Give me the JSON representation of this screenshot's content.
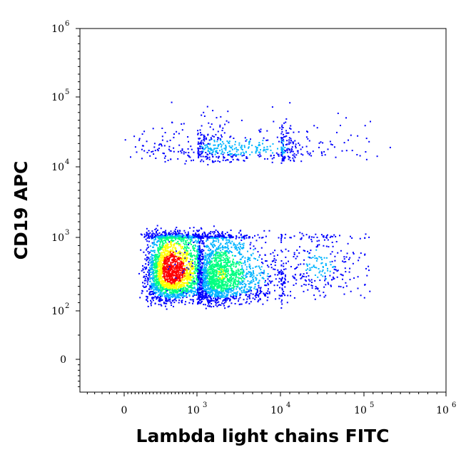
{
  "chart_data": {
    "type": "scatter",
    "plot_style": "flow cytometry density dot plot (biexponential axes)",
    "xlabel": "Lambda light chains FITC",
    "ylabel": "CD19 APC",
    "x_scale": "biexponential",
    "y_scale": "biexponential",
    "xlim": [
      -300,
      1000000
    ],
    "ylim": [
      -300,
      1000000
    ],
    "x_ticks": [
      {
        "value": 0,
        "base": "0",
        "exp": ""
      },
      {
        "value": 1000,
        "base": "10",
        "exp": "3"
      },
      {
        "value": 10000,
        "base": "10",
        "exp": "4"
      },
      {
        "value": 100000,
        "base": "10",
        "exp": "5"
      },
      {
        "value": 1000000,
        "base": "10",
        "exp": "6"
      }
    ],
    "y_ticks": [
      {
        "value": 0,
        "base": "0",
        "exp": ""
      },
      {
        "value": 100,
        "base": "10",
        "exp": "2"
      },
      {
        "value": 1000,
        "base": "10",
        "exp": "3"
      },
      {
        "value": 10000,
        "base": "10",
        "exp": "4"
      },
      {
        "value": 100000,
        "base": "10",
        "exp": "5"
      },
      {
        "value": 1000000,
        "base": "10",
        "exp": "6"
      }
    ],
    "color_scale": [
      "#0000ff",
      "#00b4ff",
      "#00ff80",
      "#ffff00",
      "#ff0000"
    ],
    "populations": [
      {
        "x_center": 650,
        "y_center": 600,
        "x_log_spread": 0.16,
        "y_log_spread": 0.2,
        "density": "high (red core)"
      },
      {
        "x_center": 3500,
        "y_center": 550,
        "x_log_spread": 0.25,
        "y_log_spread": 0.2,
        "density": "medium (green/cyan)"
      },
      {
        "x_center": 50000,
        "y_center": 650,
        "x_log_spread": 0.18,
        "y_log_spread": 0.15,
        "density": "low (blue)"
      },
      {
        "x_center": 5000,
        "y_center": 35000,
        "x_log_spread": 0.6,
        "y_log_spread": 0.15,
        "density": "low (blue, some cyan)"
      }
    ],
    "grid": false,
    "legend": "none"
  }
}
